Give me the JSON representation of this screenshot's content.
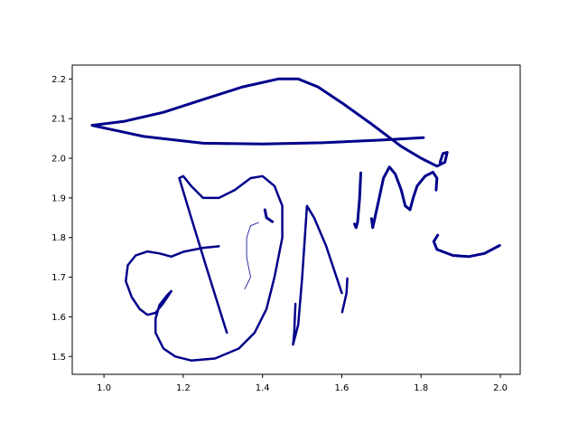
{
  "chart_data": {
    "type": "line",
    "title": "",
    "xlabel": "",
    "ylabel": "",
    "xlim": [
      0.92,
      2.05
    ],
    "ylim": [
      1.455,
      2.235
    ],
    "xticks": [
      1.0,
      1.2,
      1.4,
      1.6,
      1.8,
      2.0
    ],
    "xtick_labels": [
      "1.0",
      "1.2",
      "1.4",
      "1.6",
      "1.8",
      "2.0"
    ],
    "yticks": [
      1.5,
      1.6,
      1.7,
      1.8,
      1.9,
      2.0,
      2.1,
      2.2
    ],
    "ytick_labels": [
      "1.5",
      "1.6",
      "1.7",
      "1.8",
      "1.9",
      "2.0",
      "2.1",
      "2.2"
    ],
    "grid": false,
    "legend": "none",
    "line_color": "#00008b",
    "strokes": [
      {
        "width": 3,
        "points": [
          [
            1.806,
            2.052
          ],
          [
            1.7,
            2.046
          ],
          [
            1.55,
            2.039
          ],
          [
            1.4,
            2.036
          ],
          [
            1.25,
            2.038
          ],
          [
            1.1,
            2.055
          ],
          [
            0.97,
            2.083
          ],
          [
            1.05,
            2.093
          ],
          [
            1.15,
            2.116
          ],
          [
            1.25,
            2.148
          ],
          [
            1.35,
            2.18
          ],
          [
            1.44,
            2.2
          ],
          [
            1.49,
            2.2
          ],
          [
            1.54,
            2.18
          ],
          [
            1.6,
            2.14
          ],
          [
            1.67,
            2.09
          ],
          [
            1.75,
            2.03
          ],
          [
            1.8,
            2.0
          ],
          [
            1.84,
            1.98
          ],
          [
            1.86,
            1.99
          ],
          [
            1.866,
            2.015
          ],
          [
            1.855,
            2.012
          ],
          [
            1.848,
            1.99
          ]
        ]
      },
      {
        "width": 2.5,
        "points": [
          [
            1.29,
            1.778
          ],
          [
            1.25,
            1.774
          ],
          [
            1.2,
            1.764
          ],
          [
            1.17,
            1.752
          ],
          [
            1.14,
            1.76
          ],
          [
            1.11,
            1.765
          ],
          [
            1.08,
            1.755
          ],
          [
            1.06,
            1.73
          ],
          [
            1.055,
            1.69
          ],
          [
            1.07,
            1.65
          ],
          [
            1.09,
            1.62
          ],
          [
            1.11,
            1.605
          ],
          [
            1.13,
            1.61
          ],
          [
            1.15,
            1.635
          ],
          [
            1.17,
            1.665
          ],
          [
            1.16,
            1.655
          ],
          [
            1.14,
            1.63
          ],
          [
            1.13,
            1.595
          ],
          [
            1.13,
            1.56
          ],
          [
            1.15,
            1.52
          ],
          [
            1.18,
            1.5
          ],
          [
            1.22,
            1.49
          ],
          [
            1.28,
            1.495
          ],
          [
            1.34,
            1.52
          ],
          [
            1.38,
            1.56
          ],
          [
            1.41,
            1.62
          ],
          [
            1.43,
            1.7
          ],
          [
            1.45,
            1.8
          ],
          [
            1.45,
            1.88
          ],
          [
            1.43,
            1.93
          ],
          [
            1.4,
            1.955
          ],
          [
            1.37,
            1.95
          ],
          [
            1.33,
            1.92
          ],
          [
            1.29,
            1.9
          ],
          [
            1.25,
            1.9
          ],
          [
            1.22,
            1.93
          ],
          [
            1.2,
            1.955
          ],
          [
            1.19,
            1.95
          ],
          [
            1.22,
            1.85
          ],
          [
            1.26,
            1.72
          ],
          [
            1.31,
            1.56
          ]
        ]
      },
      {
        "width": 0.8,
        "points": [
          [
            1.39,
            1.838
          ],
          [
            1.37,
            1.83
          ],
          [
            1.36,
            1.8
          ],
          [
            1.36,
            1.75
          ],
          [
            1.37,
            1.7
          ],
          [
            1.355,
            1.67
          ]
        ]
      },
      {
        "width": 3,
        "points": [
          [
            1.406,
            1.87
          ],
          [
            1.41,
            1.85
          ],
          [
            1.425,
            1.84
          ]
        ]
      },
      {
        "width": 2.5,
        "points": [
          [
            1.483,
            1.633
          ],
          [
            1.48,
            1.56
          ],
          [
            1.477,
            1.53
          ],
          [
            1.49,
            1.58
          ],
          [
            1.5,
            1.7
          ],
          [
            1.512,
            1.88
          ],
          [
            1.53,
            1.85
          ],
          [
            1.56,
            1.78
          ],
          [
            1.58,
            1.72
          ],
          [
            1.6,
            1.66
          ]
        ]
      },
      {
        "width": 2.5,
        "points": [
          [
            1.614,
            1.697
          ],
          [
            1.612,
            1.66
          ],
          [
            1.605,
            1.63
          ],
          [
            1.601,
            1.612
          ]
        ]
      },
      {
        "width": 3,
        "points": [
          [
            1.648,
            1.963
          ],
          [
            1.645,
            1.9
          ],
          [
            1.64,
            1.84
          ],
          [
            1.636,
            1.825
          ],
          [
            1.632,
            1.834
          ]
        ]
      },
      {
        "width": 3,
        "points": [
          [
            1.675,
            1.848
          ],
          [
            1.678,
            1.825
          ],
          [
            1.69,
            1.88
          ],
          [
            1.705,
            1.95
          ],
          [
            1.72,
            1.978
          ],
          [
            1.735,
            1.96
          ],
          [
            1.75,
            1.92
          ],
          [
            1.76,
            1.88
          ],
          [
            1.772,
            1.87
          ],
          [
            1.78,
            1.9
          ],
          [
            1.79,
            1.93
          ],
          [
            1.81,
            1.955
          ],
          [
            1.83,
            1.965
          ],
          [
            1.84,
            1.95
          ],
          [
            1.838,
            1.92
          ]
        ]
      },
      {
        "width": 3,
        "points": [
          [
            1.842,
            1.806
          ],
          [
            1.832,
            1.79
          ],
          [
            1.84,
            1.77
          ],
          [
            1.88,
            1.755
          ],
          [
            1.92,
            1.752
          ],
          [
            1.96,
            1.76
          ],
          [
            1.998,
            1.78
          ]
        ]
      }
    ]
  }
}
